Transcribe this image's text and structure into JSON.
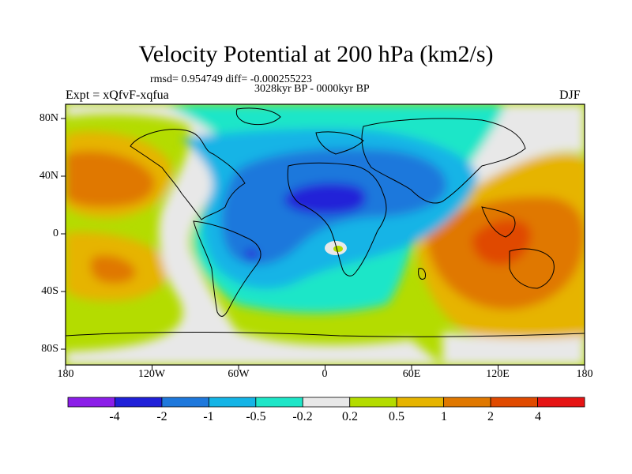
{
  "title": "Velocity Potential at 200 hPa (km2/s)",
  "stats": "rmsd= 0.954749 diff= -0.000255223",
  "period": "3028kyr BP - 0000kyr BP",
  "expt": "Expt = xQfvF-xqfua",
  "season": "DJF",
  "lat_labels": [
    "80N",
    "40N",
    "0",
    "40S",
    "80S"
  ],
  "lon_labels": [
    "180",
    "120W",
    "60W",
    "0",
    "60E",
    "120E",
    "180"
  ],
  "colorbar": {
    "labels": [
      "-4",
      "-2",
      "-1",
      "-0.5",
      "-0.2",
      "0.2",
      "0.5",
      "1",
      "2",
      "4"
    ],
    "colors": [
      "#8b1ee8",
      "#2020d8",
      "#1e78dc",
      "#14b4e6",
      "#1ee6c8",
      "#e8e8e8",
      "#b4dc00",
      "#e6b400",
      "#e07800",
      "#e04a00",
      "#e61414"
    ]
  }
}
